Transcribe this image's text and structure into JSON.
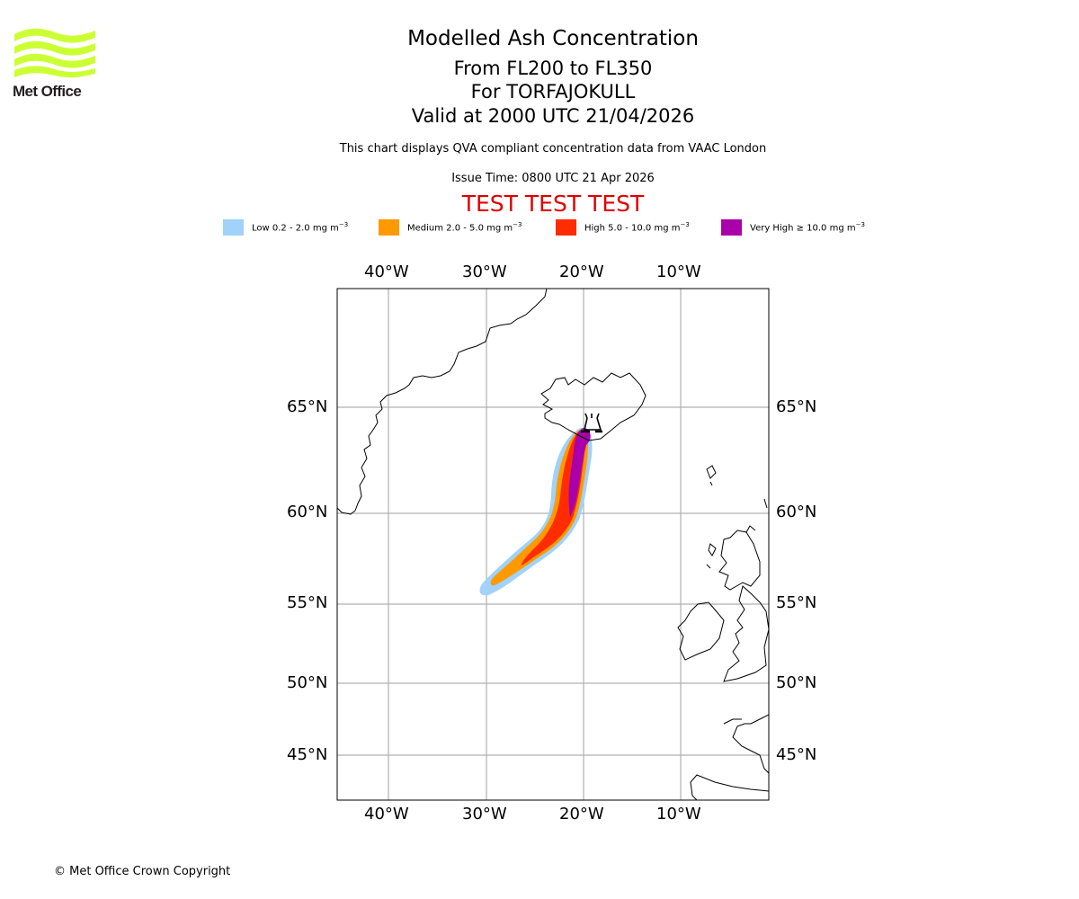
{
  "logo": {
    "name": "met-office-logo",
    "text": "Met Office",
    "color": "#ccff33"
  },
  "header": {
    "title": "Modelled Ash Concentration",
    "flight_levels": "From FL200 to FL350",
    "volcano": "For TORFAJOKULL",
    "valid_time": "Valid at 2000 UTC 21/04/2026",
    "description": "This chart displays QVA compliant concentration data from VAAC London",
    "issue_time": "Issue Time: 0800 UTC 21 Apr 2026",
    "test_banner": "TEST TEST TEST"
  },
  "legend": [
    {
      "label": "Low 0.2 - 2.0 mg m",
      "unit_exp": "−3",
      "color": "#a0d2fa"
    },
    {
      "label": "Medium 2.0 - 5.0 mg m",
      "unit_exp": "−3",
      "color": "#ff9900"
    },
    {
      "label": "High 5.0 - 10.0 mg m",
      "unit_exp": "−3",
      "color": "#ff2c00"
    },
    {
      "label": "Very High ≥ 10.0 mg m",
      "unit_exp": "−3",
      "color": "#aa00aa"
    }
  ],
  "map": {
    "extent": {
      "lon_min": -45,
      "lon_max": 1,
      "lat_min": 43,
      "lat_max": 70
    },
    "lon_ticks": [
      {
        "value": -40,
        "label": "40°W"
      },
      {
        "value": -30,
        "label": "30°W"
      },
      {
        "value": -20,
        "label": "20°W"
      },
      {
        "value": -10,
        "label": "10°W"
      }
    ],
    "lat_ticks": [
      {
        "value": 65,
        "label": "65°N"
      },
      {
        "value": 60,
        "label": "60°N"
      },
      {
        "value": 55,
        "label": "55°N"
      },
      {
        "value": 50,
        "label": "50°N"
      },
      {
        "value": 45,
        "label": "45°N"
      }
    ],
    "volcano": {
      "name": "TORFAJOKULL",
      "lon": -19.1,
      "lat": 63.9,
      "icon": "volcano-icon"
    },
    "gridline_color": "#b0b0b0",
    "coast_color": "#000000"
  },
  "footer": {
    "copyright": "© Met Office Crown Copyright"
  }
}
